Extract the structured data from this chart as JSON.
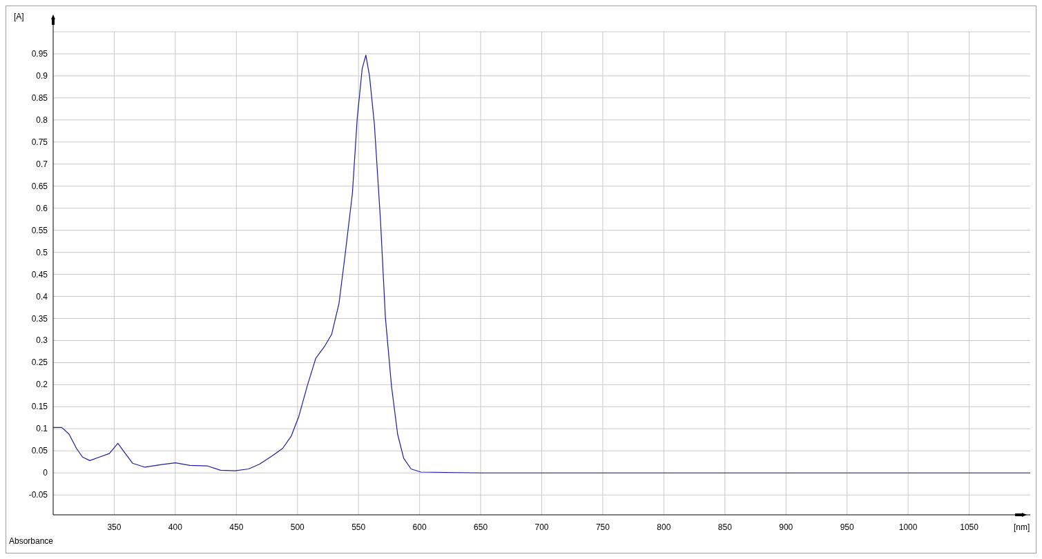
{
  "chart_data": {
    "type": "line",
    "xlabel": "[nm]",
    "ylabel": "[A]",
    "annotations": [
      "Absorbance"
    ],
    "x": [
      300,
      307,
      313,
      319,
      324,
      330,
      338,
      346,
      353,
      358,
      365,
      375,
      389,
      400,
      412,
      426,
      437,
      449,
      460,
      469,
      480,
      488,
      495,
      501,
      508,
      515,
      522,
      528,
      534,
      539,
      545,
      549,
      553,
      556,
      559,
      563,
      568,
      572,
      577,
      582,
      587,
      593,
      601,
      650,
      700,
      800,
      900,
      1000,
      1100
    ],
    "series": [
      {
        "color": "#1c1ca0",
        "values": [
          0.103,
          0.103,
          0.088,
          0.056,
          0.036,
          0.028,
          0.036,
          0.044,
          0.067,
          0.048,
          0.022,
          0.013,
          0.019,
          0.023,
          0.017,
          0.016,
          0.006,
          0.005,
          0.009,
          0.02,
          0.04,
          0.056,
          0.084,
          0.127,
          0.197,
          0.26,
          0.286,
          0.314,
          0.384,
          0.494,
          0.634,
          0.806,
          0.916,
          0.947,
          0.9,
          0.79,
          0.572,
          0.353,
          0.197,
          0.088,
          0.033,
          0.009,
          0.002,
          0,
          0,
          0,
          0,
          0,
          0
        ]
      }
    ],
    "xlim": [
      300,
      1100
    ],
    "ylim": [
      -0.095,
      1.0
    ],
    "xticks": [
      350,
      400,
      450,
      500,
      550,
      600,
      650,
      700,
      750,
      800,
      850,
      900,
      950,
      1000,
      1050
    ],
    "yticks": [
      -0.05,
      0,
      0.05,
      0.1,
      0.15,
      0.2,
      0.25,
      0.3,
      0.35,
      0.4,
      0.45,
      0.5,
      0.55,
      0.6,
      0.65,
      0.7,
      0.75,
      0.8,
      0.85,
      0.9,
      0.95,
      {
        "value": 1,
        "label": null
      }
    ],
    "grid": true,
    "marker": "none",
    "line_style": "solid"
  }
}
